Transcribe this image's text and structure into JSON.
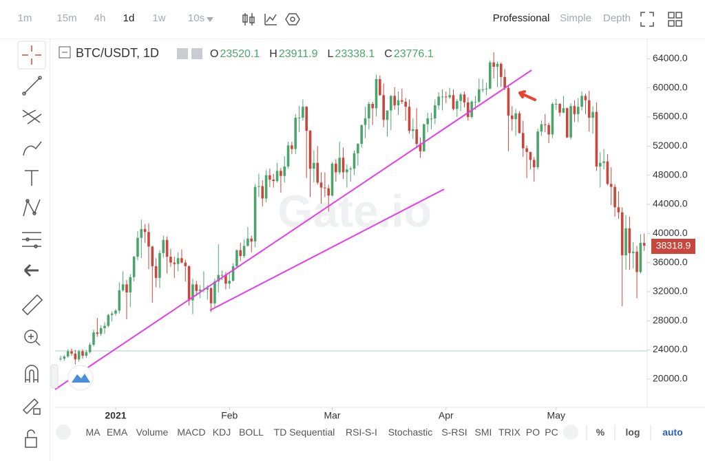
{
  "toolbar": {
    "intervals": [
      "1m",
      "15m",
      "4h",
      "1d",
      "1w",
      "10s"
    ],
    "selected_interval": "1d",
    "views": [
      "Professional",
      "Simple",
      "Depth"
    ],
    "selected_view": "Professional"
  },
  "indicators": [
    "MA",
    "EMA",
    "Volume",
    "MACD",
    "KDJ",
    "BOLL",
    "TD Sequential",
    "RSI-S-I",
    "Stochastic",
    "S-RSI",
    "SMI",
    "TRIX",
    "PO",
    "PC"
  ],
  "scale_options": [
    "%",
    "log",
    "auto"
  ],
  "selected_scale": "auto",
  "chart_data": {
    "type": "candlestick",
    "title": "BTC/USDT, 1D",
    "watermark": "Gate.io",
    "legend": [
      {
        "key": "O",
        "value": 23520.1
      },
      {
        "key": "H",
        "value": 23911.9
      },
      {
        "key": "L",
        "value": 23338.1
      },
      {
        "key": "C",
        "value": 23776.1
      }
    ],
    "up_color": "#4aa56c",
    "down_color": "#c9463d",
    "xlim": [
      -1.5,
      159.8
    ],
    "xticks": [
      {
        "value": 15,
        "label": "2021"
      },
      {
        "value": 46,
        "label": "Feb"
      },
      {
        "value": 74,
        "label": "Mar"
      },
      {
        "value": 105,
        "label": "Apr"
      },
      {
        "value": 135,
        "label": "May"
      }
    ],
    "ylim": [
      16300,
      66400
    ],
    "yticks": [
      {
        "value": 20000,
        "label": "20000.0"
      },
      {
        "value": 24000,
        "label": "24000.0"
      },
      {
        "value": 28000,
        "label": "28000.0"
      },
      {
        "value": 32000,
        "label": "32000.0"
      },
      {
        "value": 36000,
        "label": "36000.0"
      },
      {
        "value": 40000,
        "label": "40000.0"
      },
      {
        "value": 44000,
        "label": "44000.0"
      },
      {
        "value": 48000,
        "label": "48000.0"
      },
      {
        "value": 52000,
        "label": "52000.0"
      },
      {
        "value": 56000,
        "label": "56000.0"
      },
      {
        "value": 60000,
        "label": "60000.0"
      },
      {
        "value": 64000,
        "label": "64000.0"
      }
    ],
    "candles": [
      [
        22700,
        23200,
        22500,
        22800
      ],
      [
        22800,
        23300,
        22500,
        23100
      ],
      [
        23100,
        24100,
        22900,
        23800
      ],
      [
        23800,
        24200,
        23200,
        23500
      ],
      [
        23500,
        24000,
        22000,
        22700
      ],
      [
        22700,
        24000,
        22400,
        23800
      ],
      [
        23800,
        24100,
        22800,
        23200
      ],
      [
        23200,
        24000,
        22900,
        23700
      ],
      [
        23700,
        25000,
        23500,
        24700
      ],
      [
        24700,
        26800,
        24500,
        26400
      ],
      [
        26400,
        28400,
        25800,
        26200
      ],
      [
        26200,
        27400,
        25900,
        27000
      ],
      [
        27000,
        27800,
        26200,
        27300
      ],
      [
        27300,
        29000,
        27100,
        28800
      ],
      [
        28800,
        29300,
        27900,
        29000
      ],
      [
        29000,
        29600,
        28700,
        29400
      ],
      [
        29400,
        33300,
        29000,
        32200
      ],
      [
        32200,
        34800,
        32000,
        33000
      ],
      [
        33000,
        33600,
        28200,
        31900
      ],
      [
        31900,
        34400,
        29900,
        34000
      ],
      [
        34000,
        36900,
        33400,
        36800
      ],
      [
        36800,
        40300,
        36300,
        39400
      ],
      [
        39400,
        41900,
        36600,
        40600
      ],
      [
        40600,
        41300,
        38700,
        40200
      ],
      [
        40200,
        41400,
        35100,
        38200
      ],
      [
        38200,
        38300,
        30500,
        35500
      ],
      [
        35500,
        36600,
        32600,
        33900
      ],
      [
        33900,
        37700,
        32500,
        37300
      ],
      [
        37300,
        39700,
        36700,
        39100
      ],
      [
        39100,
        39600,
        34500,
        36800
      ],
      [
        36800,
        37900,
        35400,
        36000
      ],
      [
        36000,
        36800,
        33900,
        35800
      ],
      [
        35800,
        37400,
        34800,
        36600
      ],
      [
        36600,
        37800,
        35900,
        36000
      ],
      [
        36000,
        36400,
        33400,
        35500
      ],
      [
        35500,
        35600,
        30100,
        30800
      ],
      [
        30800,
        33800,
        28900,
        33000
      ],
      [
        33000,
        33500,
        31400,
        32100
      ],
      [
        32100,
        32900,
        31100,
        32300
      ],
      [
        32300,
        34800,
        31900,
        32300
      ],
      [
        32300,
        32900,
        30900,
        32500
      ],
      [
        32500,
        32600,
        29200,
        30400
      ],
      [
        30400,
        33800,
        29900,
        33400
      ],
      [
        33400,
        38500,
        31900,
        34300
      ],
      [
        34300,
        34900,
        33600,
        34300
      ],
      [
        34300,
        34700,
        32300,
        33100
      ],
      [
        33100,
        34700,
        32400,
        33500
      ],
      [
        33500,
        35900,
        33400,
        35500
      ],
      [
        35500,
        37800,
        35400,
        37700
      ],
      [
        37700,
        38700,
        36200,
        36900
      ],
      [
        36900,
        39200,
        36600,
        38300
      ],
      [
        38300,
        40900,
        38200,
        39300
      ],
      [
        39300,
        39700,
        37400,
        38900
      ],
      [
        38900,
        46800,
        38100,
        46400
      ],
      [
        46400,
        48200,
        45000,
        46500
      ],
      [
        46500,
        47300,
        43700,
        44800
      ],
      [
        44800,
        48700,
        44300,
        48000
      ],
      [
        48000,
        48900,
        46400,
        47400
      ],
      [
        47400,
        48200,
        46300,
        47200
      ],
      [
        47200,
        49700,
        47000,
        48600
      ],
      [
        48600,
        49000,
        45600,
        47900
      ],
      [
        47900,
        50600,
        47000,
        49200
      ],
      [
        49200,
        52600,
        48900,
        52100
      ],
      [
        52100,
        52600,
        50900,
        51600
      ],
      [
        51600,
        56400,
        50900,
        55900
      ],
      [
        55900,
        57500,
        53900,
        55900
      ],
      [
        55900,
        58400,
        55500,
        57400
      ],
      [
        57400,
        57500,
        47600,
        54100
      ],
      [
        54100,
        54200,
        45000,
        48900
      ],
      [
        48900,
        51400,
        47000,
        49700
      ],
      [
        49700,
        52000,
        46700,
        47000
      ],
      [
        47000,
        48400,
        44100,
        46300
      ],
      [
        46300,
        48400,
        45000,
        46200
      ],
      [
        46200,
        46700,
        43000,
        45200
      ],
      [
        45200,
        49800,
        45100,
        49600
      ],
      [
        49600,
        50200,
        47100,
        48400
      ],
      [
        48400,
        52600,
        48100,
        50400
      ],
      [
        50400,
        51800,
        47500,
        48400
      ],
      [
        48400,
        49500,
        46300,
        48800
      ],
      [
        48800,
        49200,
        47100,
        48900
      ],
      [
        48900,
        51400,
        48000,
        51000
      ],
      [
        51000,
        52400,
        49300,
        52300
      ],
      [
        52300,
        54900,
        51800,
        54900
      ],
      [
        54900,
        57400,
        53100,
        55800
      ],
      [
        55800,
        58100,
        54300,
        57800
      ],
      [
        57800,
        58100,
        54900,
        57200
      ],
      [
        57200,
        61800,
        56100,
        61200
      ],
      [
        61200,
        61700,
        58900,
        59000
      ],
      [
        59000,
        60600,
        54600,
        55600
      ],
      [
        55600,
        56900,
        53300,
        56900
      ],
      [
        56900,
        59000,
        54200,
        58900
      ],
      [
        58900,
        60100,
        57000,
        57600
      ],
      [
        57600,
        59500,
        56300,
        58300
      ],
      [
        58300,
        59900,
        57800,
        58100
      ],
      [
        58100,
        58600,
        55500,
        57400
      ],
      [
        57400,
        58400,
        53700,
        54100
      ],
      [
        54100,
        55800,
        53000,
        54300
      ],
      [
        54300,
        57200,
        51700,
        52300
      ],
      [
        52300,
        53200,
        50400,
        51300
      ],
      [
        51300,
        55100,
        51200,
        55000
      ],
      [
        55000,
        56600,
        53900,
        55800
      ],
      [
        55800,
        56600,
        54300,
        55800
      ],
      [
        55800,
        58400,
        55000,
        57600
      ],
      [
        57600,
        59400,
        57000,
        58800
      ],
      [
        58800,
        59800,
        56900,
        58800
      ],
      [
        58800,
        59500,
        57900,
        58700
      ],
      [
        58700,
        60000,
        58500,
        59000
      ],
      [
        59000,
        59800,
        56900,
        57100
      ],
      [
        57100,
        58500,
        56000,
        58200
      ],
      [
        58200,
        59300,
        56800,
        59100
      ],
      [
        59100,
        59500,
        57300,
        58000
      ],
      [
        58000,
        58700,
        55500,
        56000
      ],
      [
        56000,
        58300,
        55800,
        58100
      ],
      [
        58100,
        58900,
        57000,
        58100
      ],
      [
        58100,
        61300,
        57900,
        59800
      ],
      [
        59800,
        61200,
        59400,
        59800
      ],
      [
        59800,
        60700,
        59000,
        59900
      ],
      [
        59900,
        63800,
        59800,
        63500
      ],
      [
        63500,
        64900,
        61300,
        62900
      ],
      [
        62900,
        63600,
        60100,
        63300
      ],
      [
        63300,
        63500,
        60100,
        61500
      ],
      [
        61500,
        62600,
        59700,
        60000
      ],
      [
        60000,
        60400,
        51300,
        56200
      ],
      [
        56200,
        57500,
        54100,
        55700
      ],
      [
        55700,
        57100,
        53400,
        56500
      ],
      [
        56500,
        56800,
        53700,
        53800
      ],
      [
        53800,
        55500,
        50500,
        51700
      ],
      [
        51700,
        52100,
        47600,
        51200
      ],
      [
        51200,
        51200,
        48800,
        50100
      ],
      [
        50100,
        50500,
        47100,
        49100
      ],
      [
        49100,
        54400,
        48800,
        54000
      ],
      [
        54000,
        55500,
        53400,
        55000
      ],
      [
        55000,
        56400,
        53900,
        54900
      ],
      [
        54900,
        55200,
        52400,
        53600
      ],
      [
        53600,
        58000,
        53100,
        57800
      ],
      [
        57800,
        58500,
        57000,
        57800
      ],
      [
        57800,
        57900,
        56100,
        56600
      ],
      [
        56600,
        58900,
        56500,
        57200
      ],
      [
        57200,
        57300,
        53100,
        53200
      ],
      [
        53200,
        57900,
        52900,
        57500
      ],
      [
        57500,
        58300,
        55300,
        56400
      ],
      [
        56400,
        58600,
        55300,
        57400
      ],
      [
        57400,
        59500,
        56900,
        58900
      ],
      [
        58900,
        59200,
        56400,
        58300
      ],
      [
        58300,
        59600,
        54000,
        55900
      ],
      [
        55900,
        57500,
        53700,
        56700
      ],
      [
        56700,
        58000,
        48600,
        49200
      ],
      [
        49200,
        51200,
        46300,
        49700
      ],
      [
        49700,
        51600,
        48800,
        49900
      ],
      [
        49900,
        50900,
        46600,
        46800
      ],
      [
        46800,
        49100,
        43900,
        46400
      ],
      [
        46400,
        46800,
        42300,
        43600
      ],
      [
        43600,
        45800,
        42000,
        42900
      ],
      [
        42900,
        43600,
        30000,
        37000
      ],
      [
        37000,
        42500,
        35000,
        40700
      ],
      [
        40700,
        42300,
        35000,
        37300
      ],
      [
        37300,
        38800,
        35200,
        37500
      ],
      [
        37500,
        38300,
        31100,
        34700
      ],
      [
        34700,
        39900,
        34500,
        38700
      ],
      [
        38700,
        40000,
        37600,
        38318.9
      ]
    ]
  }
}
